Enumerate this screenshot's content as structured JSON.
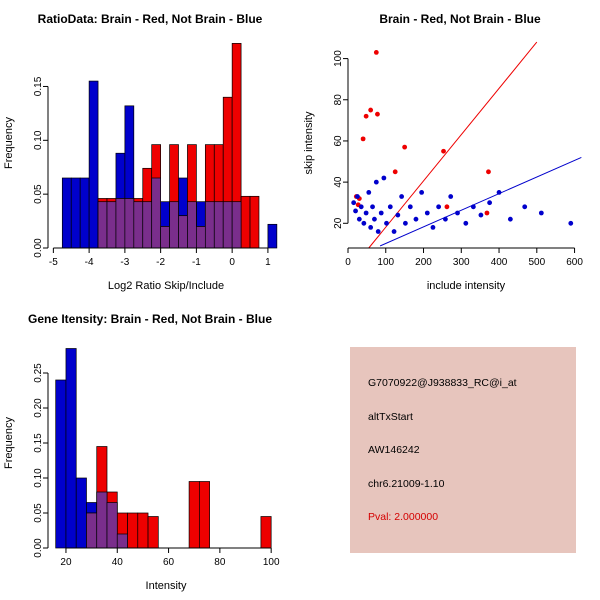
{
  "colors": {
    "red": "#EE0000",
    "blue": "#0000CC",
    "purple": "#7A2E8C",
    "info_bg": "#E7C5BD",
    "pval_red": "#D40000",
    "axis": "#000000"
  },
  "chart_data": [
    {
      "type": "bar",
      "subtype": "overlaid-histogram",
      "title": "RatioData: Brain - Red, Not Brain - Blue",
      "xlabel": "Log2 Ratio Skip/Include",
      "ylabel": "Frequency",
      "xlim": [
        -5.15,
        1.45
      ],
      "ylim": [
        0,
        0.195
      ],
      "xticks": [
        -5,
        -4,
        -3,
        -2,
        -1,
        0,
        1
      ],
      "xtick_labels": [
        "-5",
        "-4",
        "-3",
        "-2",
        "-1",
        "0",
        "1"
      ],
      "yticks": [
        0,
        0.05,
        0.1,
        0.15
      ],
      "ytick_labels": [
        "0.00",
        "0.05",
        "0.10",
        "0.15"
      ],
      "bin_width": 0.25,
      "legend_note": "Brain = red, Not Brain = blue, overlap = purple",
      "series": [
        {
          "name": "Not Brain",
          "color": "blue",
          "bins": [
            [
              -4.75,
              0.065
            ],
            [
              -4.5,
              0.065
            ],
            [
              -4.25,
              0.065
            ],
            [
              -4.0,
              0.155
            ],
            [
              -3.75,
              0.043
            ],
            [
              -3.5,
              0.043
            ],
            [
              -3.25,
              0.088
            ],
            [
              -3.0,
              0.132
            ],
            [
              -2.75,
              0.043
            ],
            [
              -2.5,
              0.043
            ],
            [
              -2.25,
              0.065
            ],
            [
              -2.0,
              0.043
            ],
            [
              -1.75,
              0.043
            ],
            [
              -1.5,
              0.065
            ],
            [
              -1.25,
              0.043
            ],
            [
              -1.0,
              0.043
            ],
            [
              -0.75,
              0.043
            ],
            [
              -0.5,
              0.043
            ],
            [
              -0.25,
              0.043
            ],
            [
              0.0,
              0.043
            ],
            [
              1.0,
              0.022
            ]
          ]
        },
        {
          "name": "Brain",
          "color": "red",
          "bins": [
            [
              -3.75,
              0.046
            ],
            [
              -3.5,
              0.046
            ],
            [
              -3.25,
              0.046
            ],
            [
              -3.0,
              0.046
            ],
            [
              -2.75,
              0.046
            ],
            [
              -2.5,
              0.074
            ],
            [
              -2.25,
              0.096
            ],
            [
              -2.0,
              0.02
            ],
            [
              -1.75,
              0.096
            ],
            [
              -1.5,
              0.03
            ],
            [
              -1.25,
              0.096
            ],
            [
              -1.0,
              0.02
            ],
            [
              -0.75,
              0.096
            ],
            [
              -0.5,
              0.096
            ],
            [
              -0.25,
              0.14
            ],
            [
              0.0,
              0.19
            ],
            [
              0.25,
              0.048
            ],
            [
              0.5,
              0.048
            ]
          ]
        }
      ]
    },
    {
      "type": "scatter",
      "title": "Brain - Red, Not Brain - Blue",
      "xlabel": "include intensity",
      "ylabel": "skip intensity",
      "xlim": [
        0,
        625
      ],
      "ylim": [
        8,
        110
      ],
      "xticks": [
        0,
        100,
        200,
        300,
        400,
        500,
        600
      ],
      "xtick_labels": [
        "0",
        "100",
        "200",
        "300",
        "400",
        "500",
        "600"
      ],
      "yticks": [
        20,
        40,
        60,
        80,
        100
      ],
      "ytick_labels": [
        "20",
        "40",
        "60",
        "80",
        "100"
      ],
      "series": [
        {
          "name": "Brain",
          "color": "red",
          "points": [
            [
              75,
              103
            ],
            [
              60,
              75
            ],
            [
              78,
              73
            ],
            [
              48,
              72
            ],
            [
              40,
              61
            ],
            [
              150,
              57
            ],
            [
              253,
              55
            ],
            [
              125,
              45
            ],
            [
              372,
              45
            ],
            [
              22,
              33
            ],
            [
              30,
              32
            ],
            [
              27,
              29
            ],
            [
              262,
              28
            ],
            [
              368,
              25
            ]
          ]
        },
        {
          "name": "Not Brain",
          "color": "blue",
          "points": [
            [
              15,
              30
            ],
            [
              20,
              26
            ],
            [
              25,
              33
            ],
            [
              30,
              22
            ],
            [
              35,
              28
            ],
            [
              42,
              20
            ],
            [
              48,
              25
            ],
            [
              55,
              35
            ],
            [
              60,
              18
            ],
            [
              65,
              28
            ],
            [
              70,
              22
            ],
            [
              75,
              40
            ],
            [
              80,
              16
            ],
            [
              88,
              25
            ],
            [
              95,
              42
            ],
            [
              102,
              20
            ],
            [
              112,
              28
            ],
            [
              122,
              16
            ],
            [
              132,
              24
            ],
            [
              142,
              33
            ],
            [
              152,
              20
            ],
            [
              165,
              28
            ],
            [
              180,
              22
            ],
            [
              195,
              35
            ],
            [
              210,
              25
            ],
            [
              225,
              18
            ],
            [
              240,
              28
            ],
            [
              258,
              22
            ],
            [
              272,
              33
            ],
            [
              290,
              25
            ],
            [
              312,
              20
            ],
            [
              332,
              28
            ],
            [
              352,
              24
            ],
            [
              375,
              30
            ],
            [
              400,
              35
            ],
            [
              430,
              22
            ],
            [
              468,
              28
            ],
            [
              512,
              25
            ],
            [
              590,
              20
            ]
          ]
        }
      ],
      "lines": [
        {
          "name": "brain-fit-line",
          "color": "red",
          "x1": 55,
          "y1": 8,
          "x2": 500,
          "y2": 108
        },
        {
          "name": "notbrain-fit-line",
          "color": "blue",
          "x1": 85,
          "y1": 9,
          "x2": 618,
          "y2": 52
        }
      ]
    },
    {
      "type": "bar",
      "subtype": "overlaid-histogram",
      "title": "Gene Itensity: Brain - Red, Not Brain - Blue",
      "xlabel": "Intensity",
      "ylabel": "Frequency",
      "xlim": [
        13,
        105
      ],
      "ylim": [
        0,
        0.3
      ],
      "xticks": [
        20,
        40,
        60,
        80,
        100
      ],
      "xtick_labels": [
        "20",
        "40",
        "60",
        "80",
        "100"
      ],
      "yticks": [
        0,
        0.05,
        0.1,
        0.15,
        0.2,
        0.25
      ],
      "ytick_labels": [
        "0.00",
        "0.05",
        "0.10",
        "0.15",
        "0.20",
        "0.25"
      ],
      "bin_width": 4,
      "legend_note": "Brain = red, Not Brain = blue, overlap = purple",
      "series": [
        {
          "name": "Not Brain",
          "color": "blue",
          "bins": [
            [
              16,
              0.24
            ],
            [
              20,
              0.285
            ],
            [
              24,
              0.1
            ],
            [
              28,
              0.065
            ],
            [
              32,
              0.08
            ],
            [
              36,
              0.065
            ],
            [
              40,
              0.02
            ]
          ]
        },
        {
          "name": "Brain",
          "color": "red",
          "bins": [
            [
              28,
              0.05
            ],
            [
              32,
              0.145
            ],
            [
              36,
              0.08
            ],
            [
              40,
              0.05
            ],
            [
              44,
              0.05
            ],
            [
              48,
              0.05
            ],
            [
              52,
              0.045
            ],
            [
              68,
              0.095
            ],
            [
              72,
              0.095
            ],
            [
              96,
              0.045
            ]
          ]
        }
      ]
    }
  ],
  "info_panel": {
    "lines": [
      {
        "text": "G7070922@J938833_RC@i_at"
      },
      {
        "text": "altTxStart"
      },
      {
        "text": "AW146242"
      },
      {
        "text": "chr6.21009-1.10"
      },
      {
        "text": "Pval: 2.000000"
      }
    ]
  }
}
